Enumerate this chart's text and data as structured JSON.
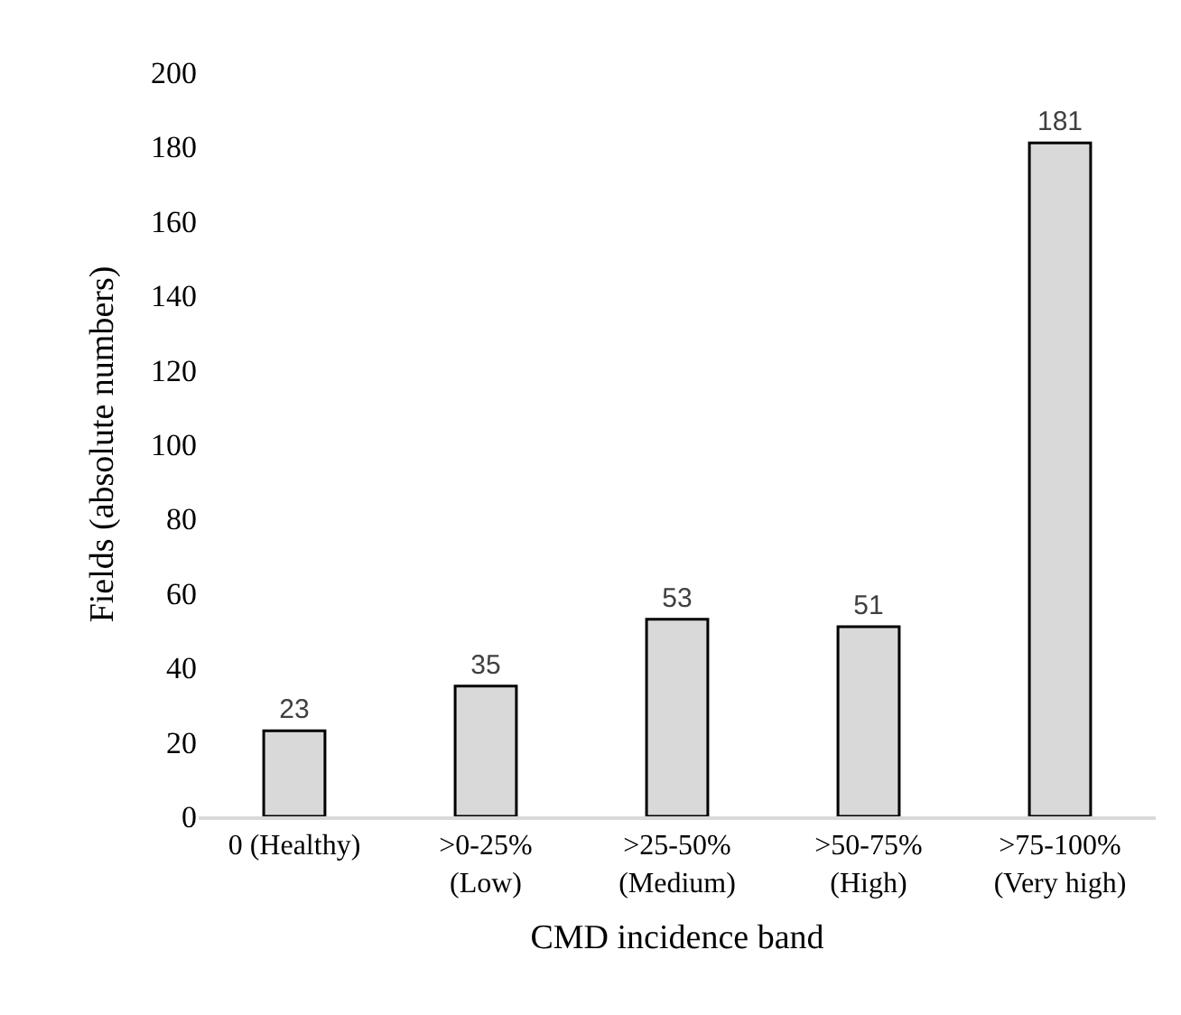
{
  "chart_data": {
    "type": "bar",
    "xlabel": "CMD incidence band",
    "ylabel": "Fields (absolute numbers)",
    "categories": [
      "0 (Healthy)",
      ">0-25%\n(Low)",
      ">25-50%\n(Medium)",
      ">50-75%\n(High)",
      ">75-100%\n(Very high)"
    ],
    "values": [
      23,
      35,
      53,
      51,
      181
    ],
    "color": "#d9d9d9",
    "ylim": [
      0,
      200
    ],
    "yticks": [
      0,
      20,
      40,
      60,
      80,
      100,
      120,
      140,
      160,
      180,
      200
    ],
    "data_labels": true,
    "grid": false,
    "legend": false
  }
}
